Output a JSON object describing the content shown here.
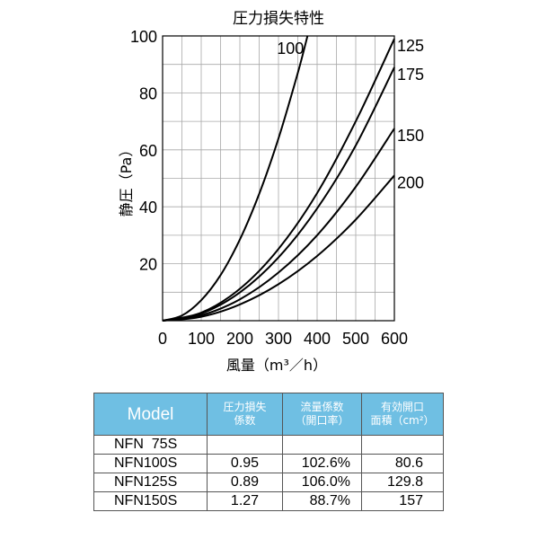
{
  "chart_data": {
    "type": "line",
    "title": "圧力損失特性",
    "xlabel": "風量（m³／h）",
    "ylabel": "静圧（Pa）",
    "xlim": [
      0,
      600
    ],
    "ylim": [
      0,
      100
    ],
    "xticks": [
      "0",
      "100",
      "200",
      "300",
      "400",
      "500",
      "600"
    ],
    "yticks": [
      "20",
      "40",
      "60",
      "80",
      "100"
    ],
    "grid": true,
    "series": [
      {
        "name": "100",
        "x": [
          0,
          50,
          100,
          150,
          200,
          250,
          300,
          350,
          375
        ],
        "y": [
          0,
          1.8,
          7.2,
          16.0,
          28.5,
          44.5,
          64.0,
          87.0,
          100.0
        ]
      },
      {
        "name": "125",
        "x": [
          0,
          100,
          200,
          300,
          400,
          500,
          600
        ],
        "y": [
          0,
          2.8,
          11.2,
          25.2,
          44.8,
          70.0,
          99.0
        ]
      },
      {
        "name": "175",
        "x": [
          0,
          100,
          200,
          300,
          400,
          500,
          600
        ],
        "y": [
          0,
          2.5,
          9.9,
          22.2,
          39.4,
          61.5,
          89.0
        ]
      },
      {
        "name": "150",
        "x": [
          0,
          100,
          200,
          300,
          400,
          500,
          600
        ],
        "y": [
          0,
          1.9,
          7.5,
          16.9,
          30.0,
          47.0,
          67.5
        ]
      },
      {
        "name": "200",
        "x": [
          0,
          100,
          200,
          300,
          400,
          500,
          600
        ],
        "y": [
          0,
          1.4,
          5.7,
          12.8,
          22.7,
          35.5,
          51.0
        ]
      }
    ]
  },
  "table": {
    "headers": [
      {
        "line1": "Model",
        "line2": ""
      },
      {
        "line1": "圧力損失",
        "line2": "係数"
      },
      {
        "line1": "流量係数",
        "line2": "（開口率）"
      },
      {
        "line1": "有効開口",
        "line2": "面積（cm²）"
      }
    ],
    "rows": [
      [
        "NFN  75S",
        "",
        "",
        ""
      ],
      [
        "NFN100S",
        "0.95",
        "102.6%",
        "80.6"
      ],
      [
        "NFN125S",
        "0.89",
        "106.0%",
        "129.8"
      ],
      [
        "NFN150S",
        "1.27",
        "88.7%",
        "157"
      ]
    ]
  }
}
